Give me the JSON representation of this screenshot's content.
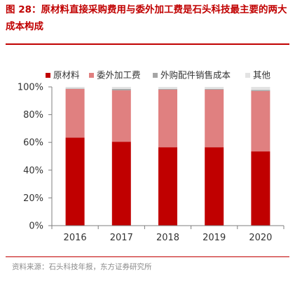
{
  "header": {
    "title": "图 28：原材料直接采购费用与委外加工费是石头科技最主要的两大成本构成"
  },
  "footer": {
    "source": "资料来源：石头科技年报，东方证券研究所"
  },
  "colors": {
    "title": "#c00000",
    "raw": "#c00000",
    "outsourced": "#e08080",
    "parts": "#a6a6a6",
    "other": "#e3e3e3",
    "source": "#8c8c8c"
  },
  "chart_data": {
    "type": "bar",
    "stacked": true,
    "categories": [
      "2016",
      "2017",
      "2018",
      "2019",
      "2020"
    ],
    "series": [
      {
        "name": "原材料",
        "color": "#c00000",
        "values": [
          63.5,
          60.5,
          56.5,
          56.5,
          53.5
        ]
      },
      {
        "name": "委外加工费",
        "color": "#e08080",
        "values": [
          35.0,
          37.0,
          41.5,
          41.5,
          43.5
        ]
      },
      {
        "name": "外购配件销售成本",
        "color": "#a6a6a6",
        "values": [
          0.3,
          1.0,
          0.5,
          0.5,
          0.8
        ]
      },
      {
        "name": "其他",
        "color": "#e3e3e3",
        "values": [
          1.2,
          1.5,
          1.5,
          1.5,
          2.2
        ]
      }
    ],
    "y_ticks": [
      "0%",
      "20%",
      "40%",
      "60%",
      "80%",
      "100%"
    ],
    "ylim": [
      0,
      100
    ],
    "legend_position": "top",
    "grid": false
  }
}
